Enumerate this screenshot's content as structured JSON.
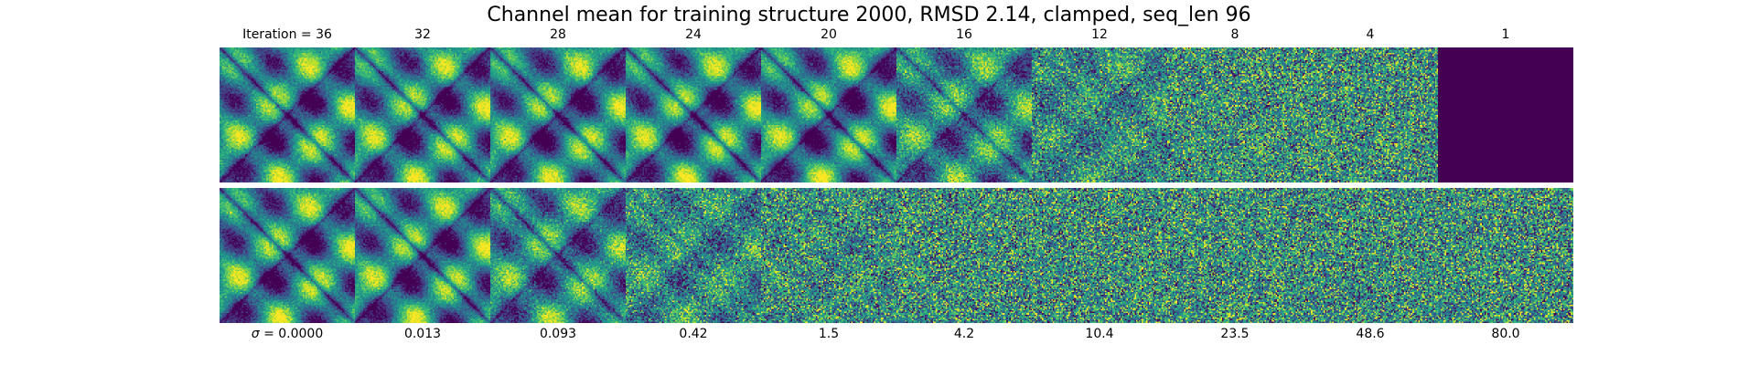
{
  "chart_data": {
    "type": "heatmap",
    "title": "Channel mean for training structure 2000, RMSD 2.14, clamped, seq_len 96",
    "colormap": "viridis",
    "top_row": {
      "iteration_labels": [
        "Iteration = 36",
        "32",
        "28",
        "24",
        "20",
        "16",
        "12",
        "8",
        "4",
        "1"
      ],
      "iterations": [
        36,
        32,
        28,
        24,
        20,
        16,
        12,
        8,
        4,
        1
      ]
    },
    "bottom_row": {
      "sigma_labels": [
        "σ = 0.0000",
        "0.013",
        "0.093",
        "0.42",
        "1.5",
        "4.2",
        "10.4",
        "23.5",
        "48.6",
        "80.0"
      ],
      "sigma": [
        0.0,
        0.013,
        0.093,
        0.42,
        1.5,
        4.2,
        10.4,
        23.5,
        48.6,
        80.0
      ]
    },
    "seq_len": 96
  }
}
